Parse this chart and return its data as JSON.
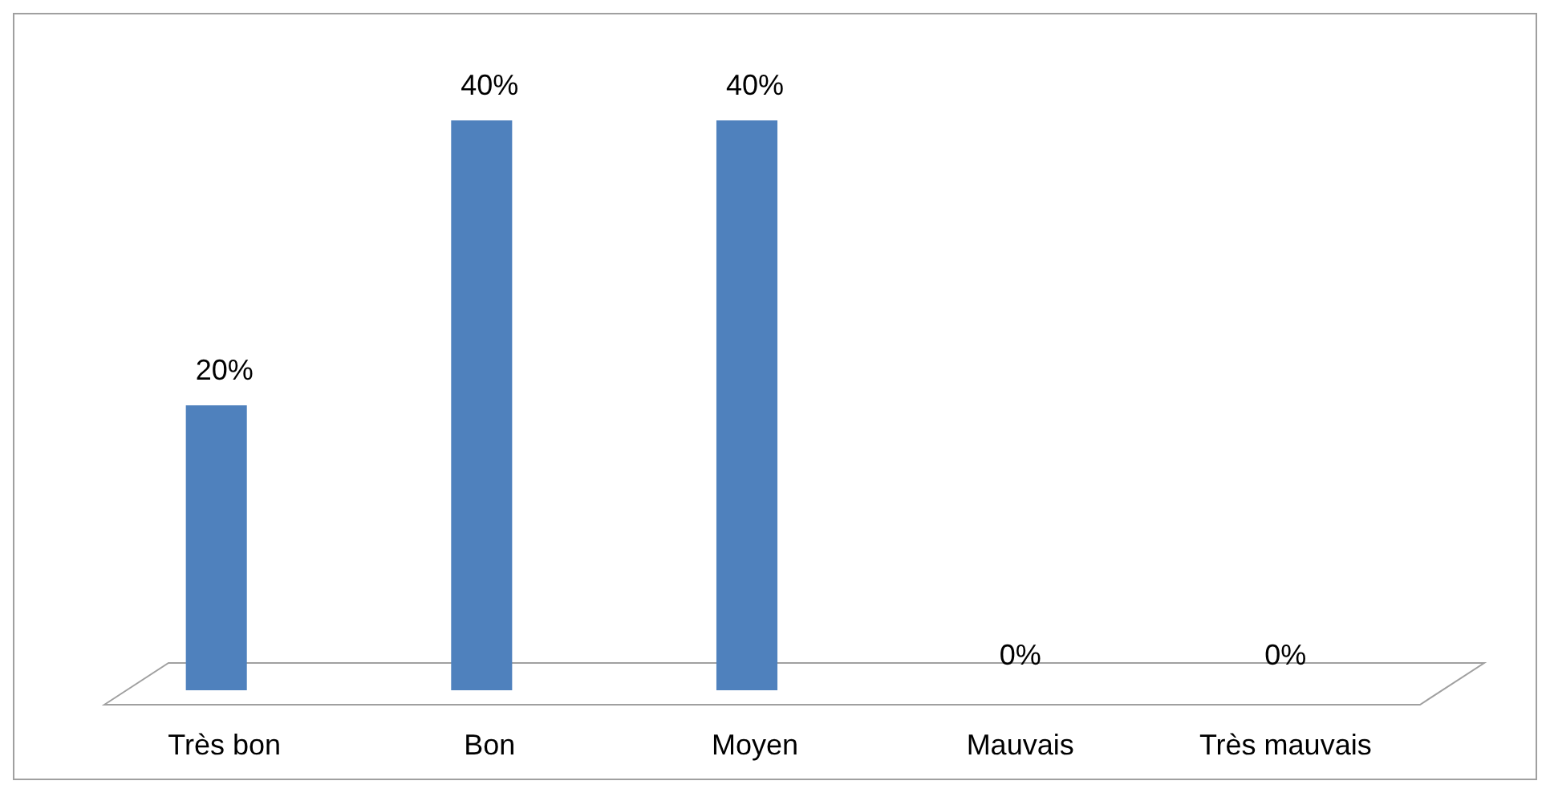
{
  "chart_data": {
    "type": "bar",
    "categories": [
      "Très bon",
      "Bon",
      "Moyen",
      "Mauvais",
      "Très mauvais"
    ],
    "values": [
      20,
      40,
      40,
      0,
      0
    ],
    "value_labels": [
      "20%",
      "40%",
      "40%",
      "0%",
      "0%"
    ],
    "color": "#4f81bd"
  }
}
